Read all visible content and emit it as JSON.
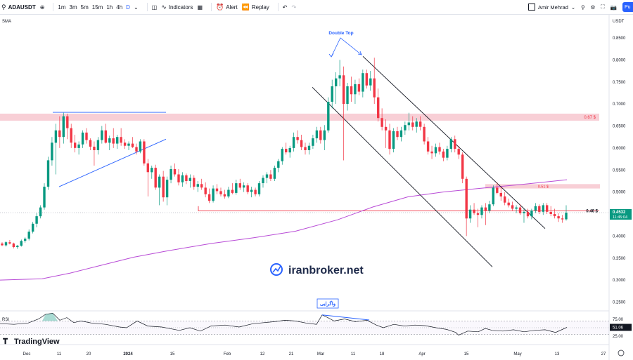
{
  "toolbar": {
    "symbol": "ADAUSDT",
    "timeframes": [
      "1m",
      "3m",
      "5m",
      "15m",
      "1h",
      "4h",
      "D"
    ],
    "active_timeframe": "D",
    "indicators_label": "Indicators",
    "alert_label": "Alert",
    "replay_label": "Replay",
    "user_name": "Amir Mehrad",
    "publish_label": "Pu"
  },
  "chart_data": {
    "type": "candlestick",
    "currency": "USDT",
    "indicator_label": "SMA",
    "y_ticks": [
      "0.8500",
      "0.8000",
      "0.7500",
      "0.7000",
      "0.6500",
      "0.6000",
      "0.5500",
      "0.5000",
      "0.4500",
      "0.4000",
      "0.3500",
      "0.3000",
      "0.2500"
    ],
    "x_ticks": [
      "Dec",
      "11",
      "20",
      "2024",
      "15",
      "Feb",
      "12",
      "21",
      "Mar",
      "11",
      "18",
      "Apr",
      "15",
      "May",
      "13",
      "27"
    ],
    "current_price": "0.4532",
    "countdown": "11:45:04",
    "levels": [
      {
        "label": "0.67 $",
        "value": 0.67
      },
      {
        "label": "0.51 $",
        "value": 0.513
      },
      {
        "label": "0.46 $",
        "value": 0.457
      }
    ],
    "annotations": {
      "double_top": "Double Top",
      "divergence": "واگرایی"
    },
    "rsi": {
      "label": "RSI",
      "ticks": [
        "75.00",
        "50.00",
        "25.00"
      ],
      "current": "51.06",
      "levels": [
        70,
        30
      ]
    },
    "colors": {
      "up": "#089981",
      "down": "#f23645",
      "sma": "#b84bd6",
      "trend": "#131722",
      "blue_line": "#2962ff",
      "zone": "#f7c7cf"
    },
    "candles_ohlc": [
      [
        0.383,
        0.386,
        0.377,
        0.379
      ],
      [
        0.379,
        0.388,
        0.376,
        0.386
      ],
      [
        0.386,
        0.391,
        0.381,
        0.383
      ],
      [
        0.383,
        0.385,
        0.372,
        0.375
      ],
      [
        0.375,
        0.38,
        0.371,
        0.378
      ],
      [
        0.378,
        0.392,
        0.376,
        0.389
      ],
      [
        0.389,
        0.397,
        0.385,
        0.394
      ],
      [
        0.394,
        0.415,
        0.39,
        0.41
      ],
      [
        0.41,
        0.432,
        0.406,
        0.428
      ],
      [
        0.428,
        0.452,
        0.42,
        0.445
      ],
      [
        0.445,
        0.47,
        0.44,
        0.465
      ],
      [
        0.465,
        0.52,
        0.46,
        0.512
      ],
      [
        0.512,
        0.58,
        0.505,
        0.572
      ],
      [
        0.572,
        0.625,
        0.56,
        0.612
      ],
      [
        0.612,
        0.655,
        0.54,
        0.64
      ],
      [
        0.64,
        0.672,
        0.6,
        0.625
      ],
      [
        0.625,
        0.68,
        0.61,
        0.672
      ],
      [
        0.672,
        0.678,
        0.62,
        0.645
      ],
      [
        0.645,
        0.655,
        0.6,
        0.612
      ],
      [
        0.612,
        0.63,
        0.59,
        0.6
      ],
      [
        0.6,
        0.615,
        0.585,
        0.608
      ],
      [
        0.608,
        0.64,
        0.6,
        0.635
      ],
      [
        0.635,
        0.645,
        0.61,
        0.618
      ],
      [
        0.618,
        0.622,
        0.595,
        0.603
      ],
      [
        0.603,
        0.615,
        0.56,
        0.595
      ],
      [
        0.595,
        0.625,
        0.585,
        0.618
      ],
      [
        0.618,
        0.65,
        0.61,
        0.64
      ],
      [
        0.64,
        0.655,
        0.61,
        0.612
      ],
      [
        0.612,
        0.628,
        0.595,
        0.622
      ],
      [
        0.622,
        0.645,
        0.6,
        0.61
      ],
      [
        0.61,
        0.63,
        0.598,
        0.625
      ],
      [
        0.625,
        0.645,
        0.605,
        0.612
      ],
      [
        0.612,
        0.62,
        0.598,
        0.605
      ],
      [
        0.605,
        0.615,
        0.595,
        0.61
      ],
      [
        0.61,
        0.625,
        0.6,
        0.602
      ],
      [
        0.602,
        0.61,
        0.585,
        0.592
      ],
      [
        0.592,
        0.62,
        0.588,
        0.615
      ],
      [
        0.615,
        0.62,
        0.56,
        0.565
      ],
      [
        0.565,
        0.575,
        0.49,
        0.545
      ],
      [
        0.545,
        0.56,
        0.53,
        0.555
      ],
      [
        0.555,
        0.562,
        0.505,
        0.51
      ],
      [
        0.51,
        0.54,
        0.47,
        0.535
      ],
      [
        0.535,
        0.548,
        0.478,
        0.488
      ],
      [
        0.488,
        0.535,
        0.47,
        0.528
      ],
      [
        0.528,
        0.56,
        0.52,
        0.552
      ],
      [
        0.552,
        0.565,
        0.535,
        0.54
      ],
      [
        0.54,
        0.552,
        0.515,
        0.522
      ],
      [
        0.522,
        0.545,
        0.512,
        0.538
      ],
      [
        0.538,
        0.542,
        0.518,
        0.525
      ],
      [
        0.525,
        0.54,
        0.51,
        0.532
      ],
      [
        0.532,
        0.538,
        0.505,
        0.512
      ],
      [
        0.512,
        0.525,
        0.5,
        0.518
      ],
      [
        0.518,
        0.53,
        0.505,
        0.51
      ],
      [
        0.51,
        0.522,
        0.488,
        0.495
      ],
      [
        0.495,
        0.508,
        0.475,
        0.48
      ],
      [
        0.48,
        0.515,
        0.476,
        0.508
      ],
      [
        0.508,
        0.518,
        0.495,
        0.502
      ],
      [
        0.502,
        0.51,
        0.49,
        0.495
      ],
      [
        0.495,
        0.505,
        0.485,
        0.49
      ],
      [
        0.49,
        0.512,
        0.486,
        0.505
      ],
      [
        0.505,
        0.52,
        0.495,
        0.498
      ],
      [
        0.498,
        0.528,
        0.494,
        0.52
      ],
      [
        0.52,
        0.53,
        0.505,
        0.51
      ],
      [
        0.51,
        0.522,
        0.5,
        0.515
      ],
      [
        0.515,
        0.52,
        0.495,
        0.5
      ],
      [
        0.5,
        0.512,
        0.488,
        0.505
      ],
      [
        0.505,
        0.51,
        0.49,
        0.495
      ],
      [
        0.495,
        0.525,
        0.49,
        0.52
      ],
      [
        0.52,
        0.538,
        0.51,
        0.532
      ],
      [
        0.532,
        0.545,
        0.52,
        0.54
      ],
      [
        0.54,
        0.55,
        0.525,
        0.53
      ],
      [
        0.53,
        0.56,
        0.525,
        0.555
      ],
      [
        0.555,
        0.575,
        0.545,
        0.57
      ],
      [
        0.57,
        0.602,
        0.562,
        0.598
      ],
      [
        0.598,
        0.612,
        0.585,
        0.59
      ],
      [
        0.59,
        0.605,
        0.578,
        0.6
      ],
      [
        0.6,
        0.635,
        0.592,
        0.625
      ],
      [
        0.625,
        0.64,
        0.61,
        0.618
      ],
      [
        0.618,
        0.63,
        0.595,
        0.602
      ],
      [
        0.602,
        0.612,
        0.585,
        0.595
      ],
      [
        0.595,
        0.612,
        0.585,
        0.605
      ],
      [
        0.605,
        0.63,
        0.598,
        0.622
      ],
      [
        0.622,
        0.648,
        0.612,
        0.64
      ],
      [
        0.64,
        0.648,
        0.61,
        0.618
      ],
      [
        0.618,
        0.652,
        0.595,
        0.64
      ],
      [
        0.64,
        0.715,
        0.635,
        0.705
      ],
      [
        0.705,
        0.755,
        0.69,
        0.74
      ],
      [
        0.74,
        0.772,
        0.7,
        0.758
      ],
      [
        0.758,
        0.8,
        0.74,
        0.765
      ],
      [
        0.765,
        0.785,
        0.572,
        0.7
      ],
      [
        0.7,
        0.748,
        0.685,
        0.74
      ],
      [
        0.74,
        0.762,
        0.705,
        0.722
      ],
      [
        0.722,
        0.755,
        0.7,
        0.745
      ],
      [
        0.745,
        0.758,
        0.72,
        0.728
      ],
      [
        0.728,
        0.778,
        0.715,
        0.77
      ],
      [
        0.77,
        0.778,
        0.735,
        0.742
      ],
      [
        0.742,
        0.775,
        0.73,
        0.758
      ],
      [
        0.758,
        0.805,
        0.7,
        0.715
      ],
      [
        0.715,
        0.735,
        0.66,
        0.668
      ],
      [
        0.668,
        0.69,
        0.64,
        0.648
      ],
      [
        0.648,
        0.665,
        0.6,
        0.64
      ],
      [
        0.64,
        0.655,
        0.585,
        0.598
      ],
      [
        0.598,
        0.645,
        0.59,
        0.638
      ],
      [
        0.638,
        0.648,
        0.618,
        0.625
      ],
      [
        0.625,
        0.648,
        0.615,
        0.64
      ],
      [
        0.64,
        0.66,
        0.63,
        0.652
      ],
      [
        0.652,
        0.68,
        0.64,
        0.658
      ],
      [
        0.658,
        0.672,
        0.64,
        0.648
      ],
      [
        0.648,
        0.668,
        0.635,
        0.66
      ],
      [
        0.66,
        0.672,
        0.64,
        0.648
      ],
      [
        0.648,
        0.655,
        0.608,
        0.615
      ],
      [
        0.615,
        0.625,
        0.585,
        0.592
      ],
      [
        0.592,
        0.605,
        0.575,
        0.588
      ],
      [
        0.588,
        0.61,
        0.58,
        0.602
      ],
      [
        0.602,
        0.612,
        0.585,
        0.592
      ],
      [
        0.592,
        0.598,
        0.57,
        0.578
      ],
      [
        0.578,
        0.605,
        0.572,
        0.598
      ],
      [
        0.598,
        0.625,
        0.59,
        0.62
      ],
      [
        0.62,
        0.628,
        0.59,
        0.598
      ],
      [
        0.598,
        0.605,
        0.575,
        0.585
      ],
      [
        0.585,
        0.59,
        0.52,
        0.53
      ],
      [
        0.53,
        0.535,
        0.4,
        0.44
      ],
      [
        0.44,
        0.47,
        0.43,
        0.46
      ],
      [
        0.46,
        0.475,
        0.448,
        0.452
      ],
      [
        0.452,
        0.462,
        0.42,
        0.448
      ],
      [
        0.448,
        0.47,
        0.44,
        0.465
      ],
      [
        0.465,
        0.475,
        0.425,
        0.458
      ],
      [
        0.458,
        0.48,
        0.452,
        0.472
      ],
      [
        0.472,
        0.515,
        0.468,
        0.51
      ],
      [
        0.51,
        0.522,
        0.495,
        0.498
      ],
      [
        0.498,
        0.512,
        0.48,
        0.49
      ],
      [
        0.49,
        0.5,
        0.47,
        0.476
      ],
      [
        0.476,
        0.485,
        0.465,
        0.47
      ],
      [
        0.47,
        0.478,
        0.458,
        0.462
      ],
      [
        0.462,
        0.47,
        0.452,
        0.465
      ],
      [
        0.465,
        0.472,
        0.448,
        0.452
      ],
      [
        0.452,
        0.462,
        0.43,
        0.455
      ],
      [
        0.455,
        0.462,
        0.44,
        0.445
      ],
      [
        0.445,
        0.462,
        0.438,
        0.458
      ],
      [
        0.458,
        0.475,
        0.452,
        0.468
      ],
      [
        0.468,
        0.472,
        0.45,
        0.455
      ],
      [
        0.455,
        0.475,
        0.448,
        0.47
      ],
      [
        0.47,
        0.475,
        0.45,
        0.455
      ],
      [
        0.455,
        0.468,
        0.445,
        0.45
      ],
      [
        0.45,
        0.462,
        0.44,
        0.445
      ],
      [
        0.445,
        0.452,
        0.432,
        0.44
      ],
      [
        0.44,
        0.448,
        0.43,
        0.438
      ],
      [
        0.438,
        0.47,
        0.435,
        0.453
      ]
    ],
    "sma_points": [
      [
        0,
        0.3
      ],
      [
        20,
        0.301
      ],
      [
        60,
        0.303
      ],
      [
        100,
        0.316
      ],
      [
        140,
        0.332
      ],
      [
        190,
        0.352
      ],
      [
        240,
        0.367
      ],
      [
        300,
        0.383
      ],
      [
        360,
        0.396
      ],
      [
        420,
        0.411
      ],
      [
        480,
        0.437
      ],
      [
        530,
        0.466
      ],
      [
        580,
        0.489
      ],
      [
        630,
        0.5
      ],
      [
        680,
        0.508
      ],
      [
        740,
        0.517
      ],
      [
        806,
        0.528
      ]
    ],
    "rsi_points": [
      [
        0,
        62
      ],
      [
        20,
        60
      ],
      [
        40,
        64
      ],
      [
        55,
        76
      ],
      [
        65,
        90
      ],
      [
        75,
        93
      ],
      [
        85,
        72
      ],
      [
        95,
        80
      ],
      [
        105,
        65
      ],
      [
        115,
        70
      ],
      [
        130,
        64
      ],
      [
        150,
        60
      ],
      [
        170,
        52
      ],
      [
        180,
        50
      ],
      [
        195,
        70
      ],
      [
        210,
        55
      ],
      [
        230,
        52
      ],
      [
        255,
        42
      ],
      [
        270,
        50
      ],
      [
        285,
        40
      ],
      [
        300,
        55
      ],
      [
        320,
        58
      ],
      [
        340,
        52
      ],
      [
        360,
        62
      ],
      [
        375,
        65
      ],
      [
        390,
        68
      ],
      [
        405,
        72
      ],
      [
        420,
        70
      ],
      [
        435,
        64
      ],
      [
        450,
        60
      ],
      [
        458,
        88
      ],
      [
        466,
        80
      ],
      [
        475,
        70
      ],
      [
        490,
        76
      ],
      [
        505,
        68
      ],
      [
        522,
        72
      ],
      [
        535,
        58
      ],
      [
        545,
        50
      ],
      [
        560,
        60
      ],
      [
        575,
        55
      ],
      [
        590,
        58
      ],
      [
        605,
        56
      ],
      [
        620,
        50
      ],
      [
        635,
        45
      ],
      [
        648,
        36
      ],
      [
        652,
        28
      ],
      [
        665,
        40
      ],
      [
        680,
        38
      ],
      [
        690,
        48
      ],
      [
        700,
        42
      ],
      [
        715,
        40
      ],
      [
        730,
        44
      ],
      [
        745,
        38
      ],
      [
        760,
        42
      ],
      [
        775,
        44
      ],
      [
        790,
        36
      ],
      [
        806,
        51
      ]
    ]
  },
  "watermark": {
    "text": "iranbroker.net",
    "logo": "TradingView"
  }
}
